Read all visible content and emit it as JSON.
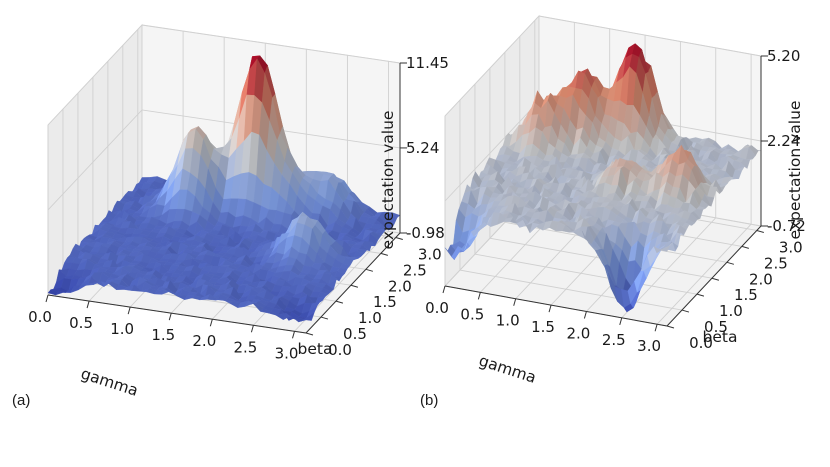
{
  "chart_data": [
    {
      "type": "surface3d",
      "panel_label": "(a)",
      "xlabel": "gamma",
      "ylabel": "beta",
      "zlabel": "expectation value",
      "x_ticks": [
        "0.0",
        "0.5",
        "1.0",
        "1.5",
        "2.0",
        "2.5",
        "3.0"
      ],
      "y_ticks": [
        "0.0",
        "0.5",
        "1.0",
        "1.5",
        "2.0",
        "2.5",
        "3.0"
      ],
      "z_ticks": [
        "-0.98",
        "5.24",
        "11.45"
      ],
      "xlim": [
        0,
        3.14
      ],
      "ylim": [
        0,
        3.14
      ],
      "zlim": [
        -0.98,
        11.45
      ],
      "colormap": "coolwarm",
      "grid": true,
      "baseline": 0.3,
      "features": [
        {
          "gamma": 1.55,
          "beta": 2.75,
          "value": 11.45
        },
        {
          "gamma": 0.9,
          "beta": 2.45,
          "value": 6.4
        },
        {
          "gamma": 2.35,
          "beta": 2.9,
          "value": 3.2
        },
        {
          "gamma": 1.95,
          "beta": 2.6,
          "value": 2.5
        },
        {
          "gamma": 2.55,
          "beta": 1.6,
          "value": 3.5
        },
        {
          "gamma": 2.95,
          "beta": 0.25,
          "value": -0.6
        },
        {
          "gamma": 0.05,
          "beta": 0.1,
          "value": -0.98
        }
      ]
    },
    {
      "type": "surface3d",
      "panel_label": "(b)",
      "xlabel": "gamma",
      "ylabel": "beta",
      "zlabel": "expectation value",
      "x_ticks": [
        "0.0",
        "0.5",
        "1.0",
        "1.5",
        "2.0",
        "2.5",
        "3.0"
      ],
      "y_ticks": [
        "0.0",
        "0.5",
        "1.0",
        "1.5",
        "2.0",
        "2.5",
        "3.0"
      ],
      "z_ticks": [
        "-0.72",
        "2.24",
        "5.20"
      ],
      "xlim": [
        0,
        3.14
      ],
      "ylim": [
        0,
        3.14
      ],
      "zlim": [
        -0.72,
        5.2
      ],
      "colormap": "coolwarm",
      "grid": true,
      "baseline": 1.9,
      "features": [
        {
          "gamma": 1.5,
          "beta": 2.85,
          "value": 5.2
        },
        {
          "gamma": 0.9,
          "beta": 2.55,
          "value": 4.3
        },
        {
          "gamma": 0.45,
          "beta": 2.2,
          "value": 3.6
        },
        {
          "gamma": 2.65,
          "beta": 1.6,
          "value": 3.5
        },
        {
          "gamma": 1.9,
          "beta": 1.5,
          "value": 2.9
        },
        {
          "gamma": 2.5,
          "beta": 0.2,
          "value": -0.72
        },
        {
          "gamma": 0.1,
          "beta": 0.15,
          "value": 0.1
        }
      ]
    }
  ]
}
